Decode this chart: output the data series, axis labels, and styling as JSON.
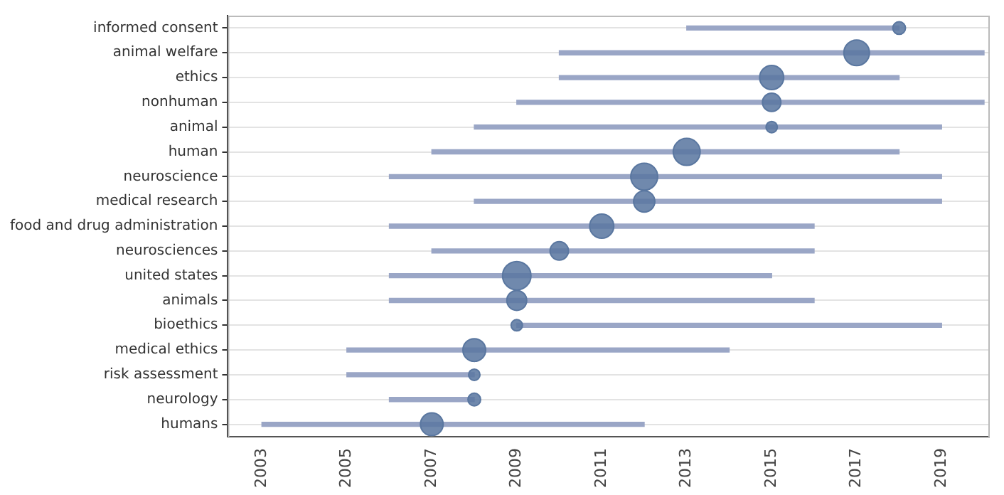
{
  "chart_data": {
    "type": "bar",
    "orientation": "horizontal",
    "categories": [
      "informed consent",
      "animal welfare",
      "ethics",
      "nonhuman",
      "animal",
      "human",
      "neuroscience",
      "medical research",
      "food and drug administration",
      "neurosciences",
      "united states",
      "animals",
      "bioethics",
      "medical ethics",
      "risk assessment",
      "neurology",
      "humans"
    ],
    "series": [
      {
        "type": "bar",
        "color": "#9aa6c6",
        "base": [
          2013,
          2010,
          2010,
          2009,
          2008,
          2007,
          2006,
          2008,
          2006,
          2007,
          2006,
          2006,
          2009,
          2005,
          2005,
          2006,
          2003
        ],
        "values": [
          5,
          10,
          8,
          11,
          11,
          11,
          13,
          11,
          10,
          9,
          9,
          10,
          10,
          9,
          3,
          2,
          9
        ]
      },
      {
        "type": "scatter",
        "color": "#5a77a0",
        "values": [
          2018,
          2017,
          2015,
          2015,
          2015,
          2013,
          2012,
          2012,
          2011,
          2010,
          2009,
          2009,
          2009,
          2008,
          2008,
          2008,
          2007
        ],
        "sizes": [
          0.2,
          0.81,
          0.72,
          0.42,
          0.16,
          0.9,
          0.9,
          0.56,
          0.72,
          0.42,
          1,
          0.49,
          0.16,
          0.64,
          0.16,
          0.2,
          0.64
        ]
      }
    ],
    "xlim": [
      2002.2,
      2020.1
    ],
    "xticks": [
      2003,
      2005,
      2007,
      2009,
      2011,
      2013,
      2015,
      2017,
      2019
    ],
    "grid": "y",
    "legend": false,
    "marker": "circle"
  }
}
